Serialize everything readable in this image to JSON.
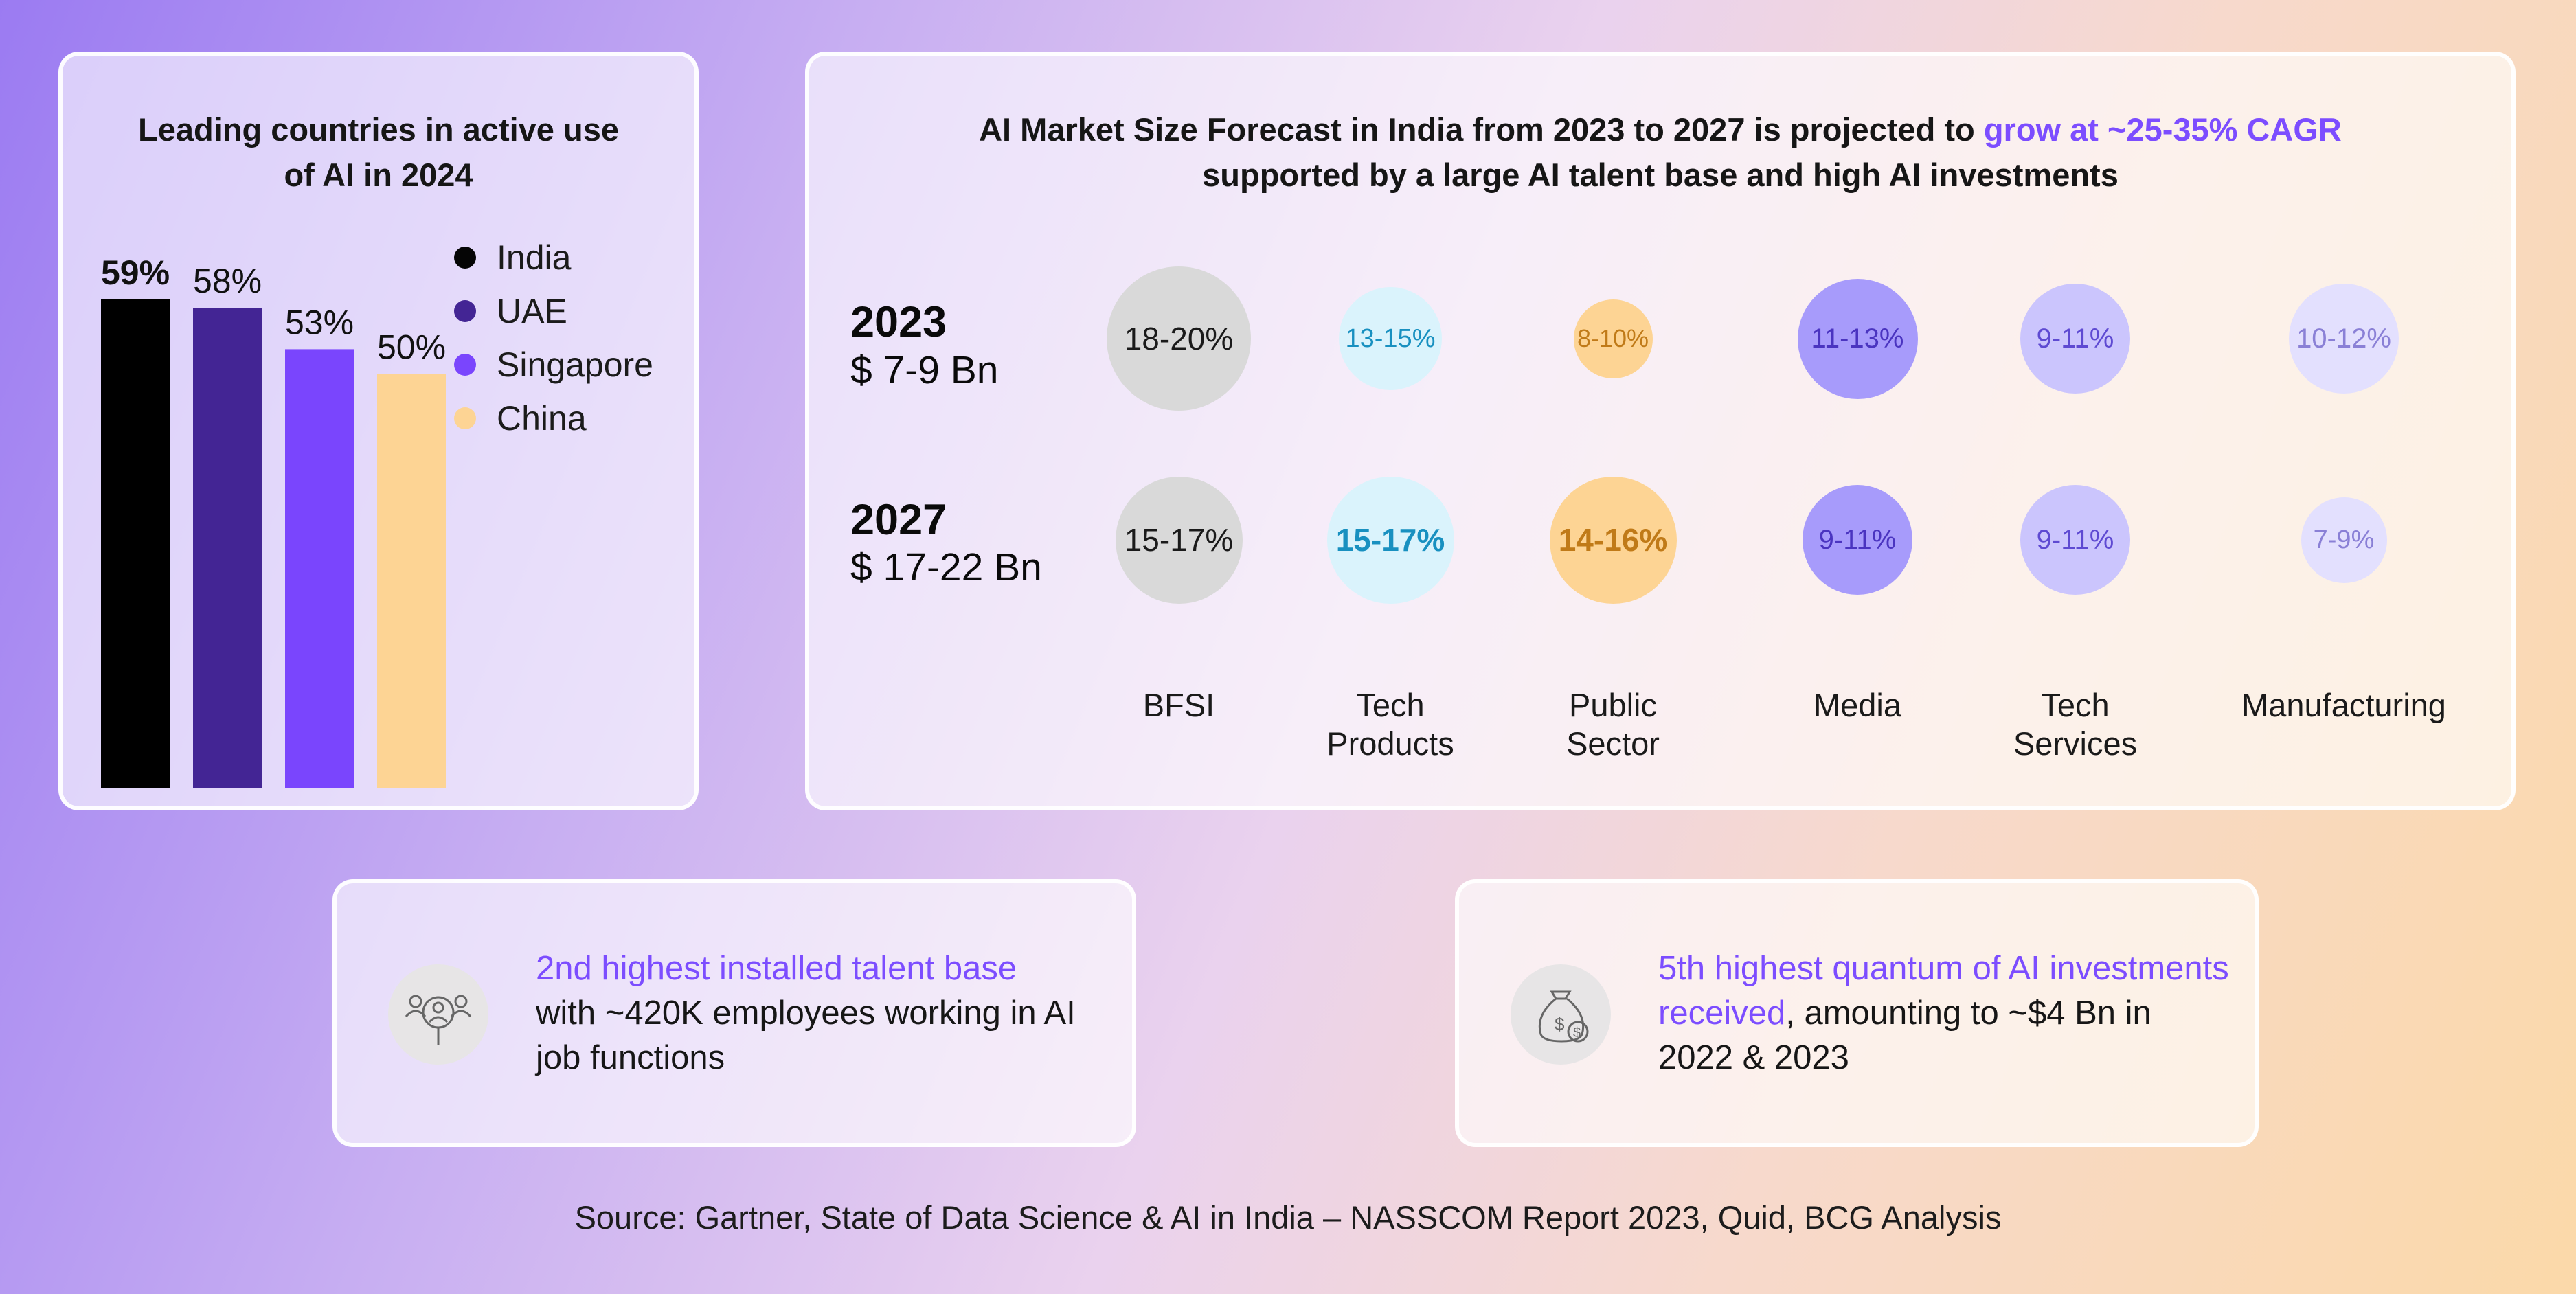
{
  "bar_card": {
    "title_line1": "Leading countries in active use",
    "title_line2": "of AI in 2024"
  },
  "forecast_card": {
    "title_part1": "AI Market Size Forecast in India from 2023 to 2027 is projected to ",
    "title_highlight": "grow at ~25-35% CAGR",
    "title_line2": "supported by a large AI talent base and high AI investments",
    "rows": [
      {
        "year": "2023",
        "size": "$ 7-9 Bn"
      },
      {
        "year": "2027",
        "size": "$ 17-22 Bn"
      }
    ],
    "sectors": [
      "BFSI",
      "Tech\nProducts",
      "Public\nSector",
      "Media",
      "Tech\nServices",
      "Manufacturing"
    ],
    "values_2023": [
      "18-20%",
      "13-15%",
      "8-10%",
      "11-13%",
      "9-11%",
      "10-12%"
    ],
    "values_2027": [
      "15-17%",
      "15-17%",
      "14-16%",
      "9-11%",
      "9-11%",
      "7-9%"
    ]
  },
  "stats": {
    "talent": {
      "highlight": "2nd highest installed talent base",
      "text": "with ~420K employees working in AI job functions",
      "icon": "talent-search-icon"
    },
    "invest": {
      "highlight": "5th highest quantum of AI investments received",
      "text": ", amounting to ~$4 Bn in 2022 & 2023",
      "icon": "money-bag-icon"
    }
  },
  "source": "Source: Gartner, State of Data Science & AI in India – NASSCOM Report 2023, Quid, BCG Analysis",
  "colors": {
    "india": "#000000",
    "uae": "#432594",
    "singapore": "#7a45fd",
    "china": "#fdd494",
    "accent": "#7c4dff"
  },
  "chart_data": [
    {
      "type": "bar",
      "title": "Leading countries in active use of AI in 2024",
      "categories": [
        "India",
        "UAE",
        "Singapore",
        "China"
      ],
      "values": [
        59,
        58,
        53,
        50
      ],
      "labels": [
        "59%",
        "58%",
        "53%",
        "50%"
      ],
      "ylim": [
        0,
        70
      ],
      "legend": "top-right",
      "grid": false
    },
    {
      "type": "scatter",
      "title": "AI Market Size Forecast in India from 2023 to 2027",
      "categories": [
        "BFSI",
        "Tech Products",
        "Public Sector",
        "Media",
        "Tech Services",
        "Manufacturing"
      ],
      "series": [
        {
          "name": "2023",
          "values": [
            "18-20%",
            "13-15%",
            "8-10%",
            "11-13%",
            "9-11%",
            "10-12%"
          ]
        },
        {
          "name": "2027",
          "values": [
            "15-17%",
            "15-17%",
            "14-16%",
            "9-11%",
            "9-11%",
            "7-9%"
          ]
        }
      ]
    }
  ]
}
